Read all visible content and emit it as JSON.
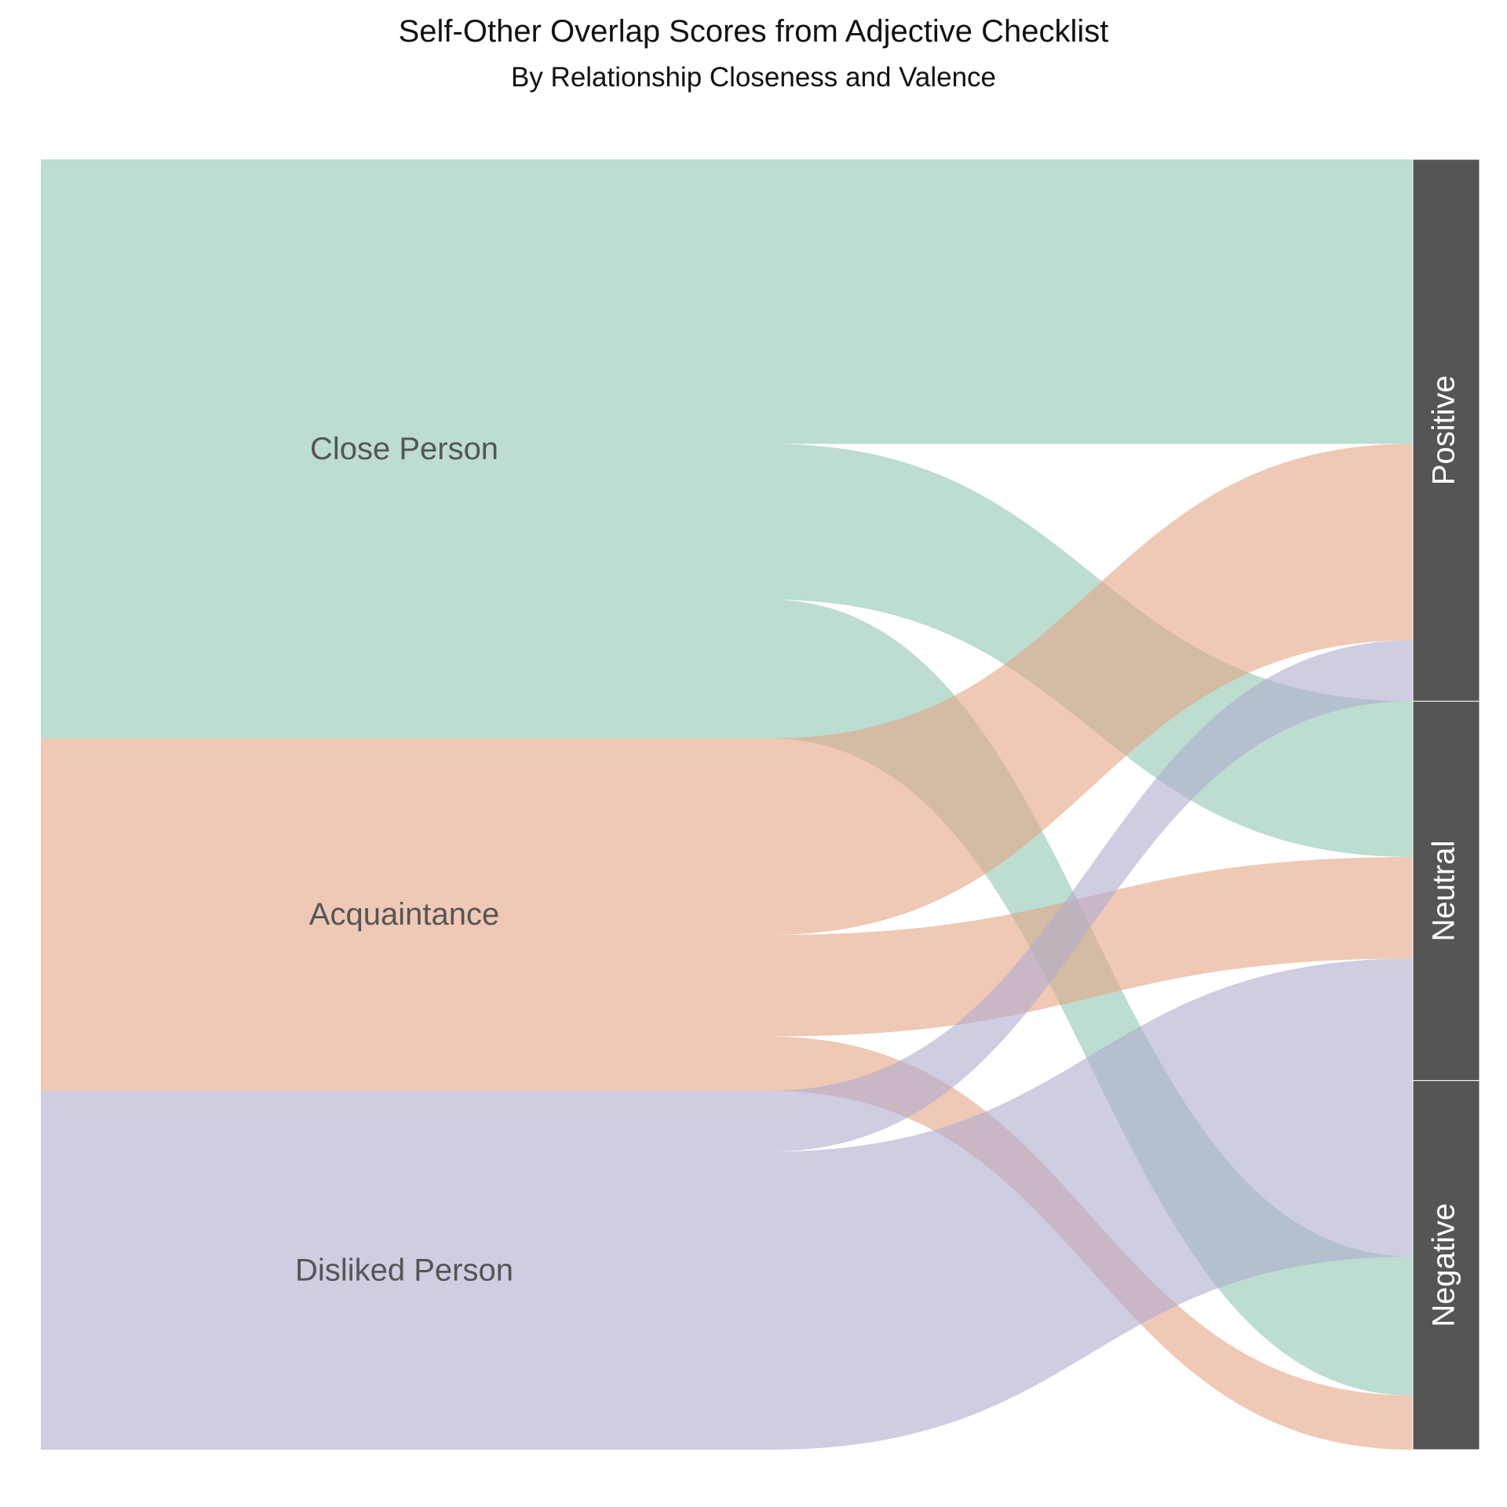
{
  "chart_data": {
    "type": "sankey",
    "title": "Self-Other Overlap Scores from Adjective Checklist",
    "subtitle": "By Relationship Closeness and Valence",
    "sources": [
      {
        "name": "Close Person",
        "color": "#8fc7b1"
      },
      {
        "name": "Acquaintance",
        "color": "#e5a585"
      },
      {
        "name": "Disliked Person",
        "color": "#afacce"
      }
    ],
    "targets": [
      {
        "name": "Positive",
        "color": "#555555"
      },
      {
        "name": "Neutral",
        "color": "#555555"
      },
      {
        "name": "Negative",
        "color": "#555555"
      }
    ],
    "flows": [
      {
        "source": "Close Person",
        "target": "Positive",
        "value": 4.2,
        "group": "Close Person"
      },
      {
        "source": "Close Person",
        "target": "Neutral",
        "value": 2.3,
        "group": "Close Person"
      },
      {
        "source": "Close Person",
        "target": "Negative",
        "value": 2.05,
        "group": "Close Person"
      },
      {
        "source": "Acquaintance",
        "target": "Positive",
        "value": 2.9,
        "group": "Acquaintance"
      },
      {
        "source": "Acquaintance",
        "target": "Neutral",
        "value": 1.5,
        "group": "Acquaintance"
      },
      {
        "source": "Acquaintance",
        "target": "Negative",
        "value": 0.8,
        "group": "Acquaintance"
      },
      {
        "source": "Disliked Person",
        "target": "Positive",
        "value": 0.9,
        "group": "Disliked Person"
      },
      {
        "source": "Disliked Person",
        "target": "Neutral",
        "value": 1.8,
        "group": "Disliked Person"
      },
      {
        "source": "Disliked Person",
        "target": "Negative",
        "value": 2.6,
        "group": "Disliked Person"
      }
    ],
    "link_order": {
      "Close Person": [
        "Positive",
        "Neutral",
        "Negative"
      ],
      "Acquaintance": [
        "Positive",
        "Neutral",
        "Negative"
      ],
      "Disliked Person": [
        "Positive",
        "Neutral",
        "Negative"
      ]
    },
    "target_order": {
      "Positive": [
        "Close Person",
        "Acquaintance",
        "Disliked Person"
      ],
      "Neutral": [
        "Close Person",
        "Acquaintance",
        "Disliked Person"
      ],
      "Negative": [
        "Disliked Person",
        "Close Person",
        "Acquaintance"
      ]
    },
    "link_opacity": 0.6
  }
}
